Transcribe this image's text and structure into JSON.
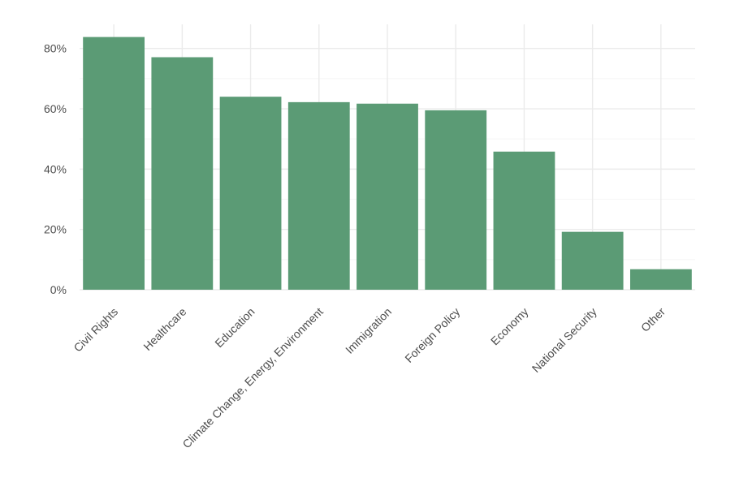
{
  "colors": {
    "bar": "#5b9b75",
    "grid_major": "#ebebeb",
    "grid_minor": "#f4f4f4",
    "text": "#4d4d4d",
    "background": "#ffffff"
  },
  "chart_data": {
    "type": "bar",
    "title": "",
    "xlabel": "",
    "ylabel": "",
    "categories": [
      "Civil Rights",
      "Healthcare",
      "Education",
      "Climate Change, Energy, Environment",
      "Immigration",
      "Foreign Policy",
      "Economy",
      "National Security",
      "Other"
    ],
    "values": [
      83.8,
      77.1,
      64.0,
      62.2,
      61.7,
      59.5,
      45.8,
      19.2,
      6.8
    ],
    "ylim": [
      0,
      88
    ],
    "yticks": [
      0,
      20,
      40,
      60,
      80
    ],
    "ytick_labels": [
      "0%",
      "20%",
      "40%",
      "60%",
      "80%"
    ],
    "grid": true,
    "legend": "none"
  }
}
